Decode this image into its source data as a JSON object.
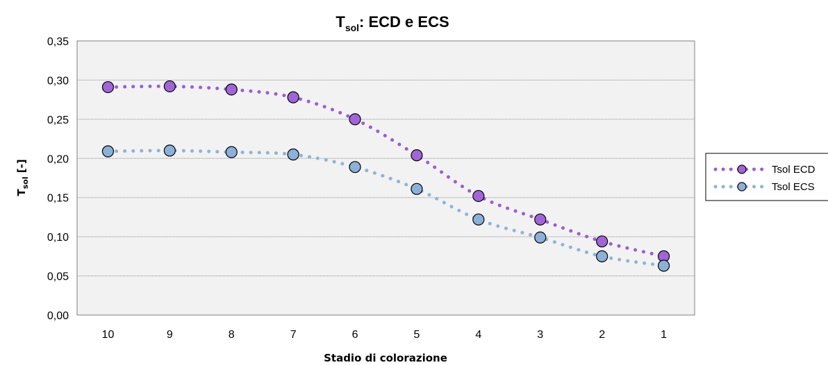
{
  "chart_data": {
    "type": "line",
    "title_main": "T",
    "title_sub": "sol",
    "title_rest": ": ECD e ECS",
    "xlabel": "Stadio di colorazione",
    "ylabel_main": "T",
    "ylabel_sub": "sol",
    "ylabel_rest": " [-]",
    "categories": [
      "10",
      "9",
      "8",
      "7",
      "6",
      "5",
      "4",
      "3",
      "2",
      "1"
    ],
    "ylim": [
      0,
      0.35
    ],
    "yticks": [
      "0,00",
      "0,05",
      "0,10",
      "0,15",
      "0,20",
      "0,25",
      "0,30",
      "0,35"
    ],
    "grid": true,
    "legend_position": "right",
    "series": [
      {
        "name": "Tsol ECD",
        "color": "#9a5fd0",
        "marker_color": "#a066d6",
        "values": [
          0.291,
          0.292,
          0.288,
          0.278,
          0.25,
          0.204,
          0.152,
          0.122,
          0.094,
          0.075
        ]
      },
      {
        "name": "Tsol ECS",
        "color": "#8fb4d6",
        "marker_color": "#8cb0d8",
        "values": [
          0.209,
          0.21,
          0.208,
          0.205,
          0.189,
          0.161,
          0.122,
          0.099,
          0.075,
          0.063
        ]
      }
    ]
  }
}
